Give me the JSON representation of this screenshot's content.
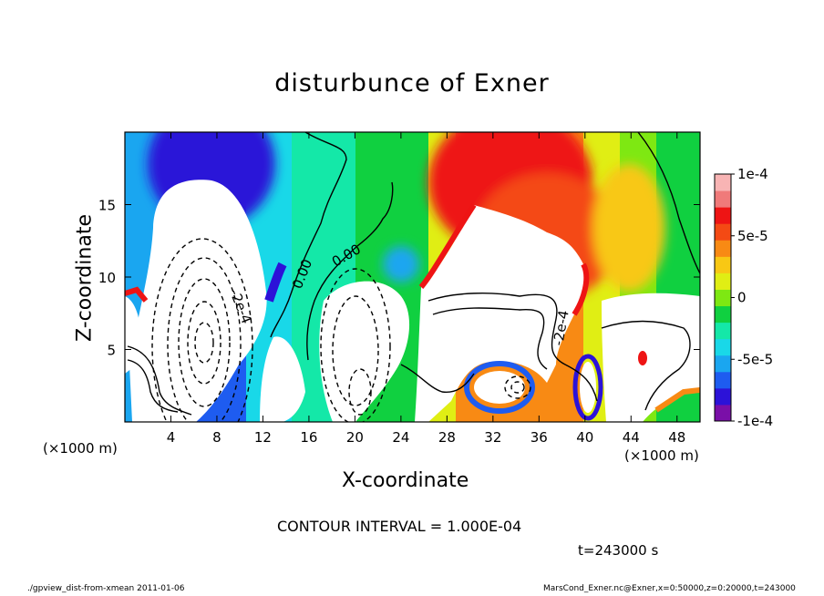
{
  "chart_data": {
    "type": "heatmap",
    "title": "disturbunce of Exner",
    "xlabel": "X-coordinate",
    "ylabel": "Z-coordinate",
    "x_unit_label": "(×1000 m)",
    "x_unit_label_right": "(×1000 m)",
    "xlim": [
      0,
      50
    ],
    "ylim": [
      0,
      20
    ],
    "x_ticks": [
      4,
      8,
      12,
      16,
      20,
      24,
      28,
      32,
      36,
      40,
      44,
      48
    ],
    "y_ticks": [
      5,
      10,
      15
    ],
    "colorbar": {
      "range": [
        -0.0001,
        0.0001
      ],
      "tick_labels": [
        "1e-4",
        "5e-5",
        "0",
        "-5e-5",
        "-1e-4"
      ],
      "tick_values": [
        0.0001,
        5e-05,
        0,
        -5e-05,
        -0.0001
      ],
      "colors": [
        "#7a0fa8",
        "#2c12d8",
        "#1e5cf0",
        "#1aa6f0",
        "#19d8e8",
        "#14e8a8",
        "#10d040",
        "#7ee812",
        "#e0ee14",
        "#f8c814",
        "#f88a14",
        "#f44a14",
        "#ee1414",
        "#f07a7a",
        "#f8b4b4"
      ]
    },
    "contour_labels": [
      "0.00",
      "0.00",
      "-2e-4",
      "-2e-4"
    ],
    "contour_interval": "CONTOUR INTERVAL = 1.000E-04",
    "time": "t=243000 s",
    "footer_left": "./gpview_dist-from-xmean  2011-01-06",
    "footer_right": "MarsCond_Exner.nc@Exner,x=0:50000,z=0:20000,t=243000"
  }
}
